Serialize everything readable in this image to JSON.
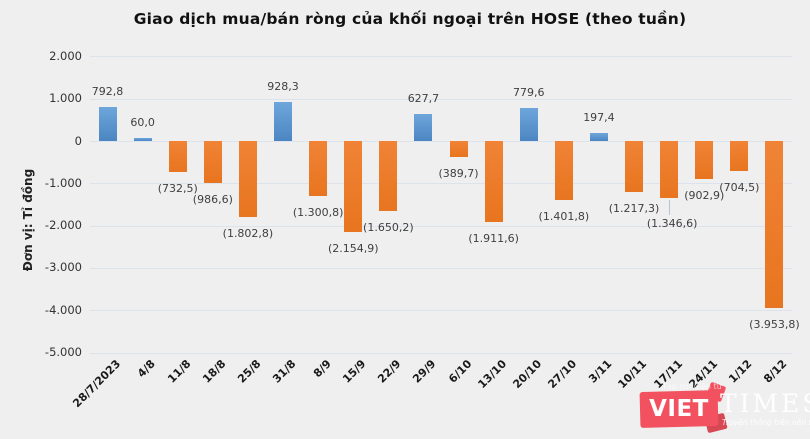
{
  "title": "Giao dịch mua/bán ròng của khối ngoại trên HOSE (theo tuần)",
  "y_axis_title": "Đơn vị: Tỉ đồng",
  "chart_data": {
    "type": "bar",
    "categories": [
      "28/7/2023",
      "4/8",
      "11/8",
      "18/8",
      "25/8",
      "31/8",
      "8/9",
      "15/9",
      "22/9",
      "29/9",
      "6/10",
      "13/10",
      "20/10",
      "27/10",
      "3/11",
      "10/11",
      "17/11",
      "24/11",
      "1/12",
      "8/12"
    ],
    "values": [
      792.8,
      60.0,
      -732.5,
      -986.6,
      -1802.8,
      928.3,
      -1300.8,
      -2154.9,
      -1650.2,
      627.7,
      -389.7,
      -1911.6,
      779.6,
      -1401.8,
      197.4,
      -1217.3,
      -1346.6,
      -902.9,
      -704.5,
      -3953.8
    ],
    "data_labels": [
      "792,8",
      "60,0",
      "(732,5)",
      "(986,6)",
      "(1.802,8)",
      "928,3",
      "(1.300,8)",
      "(2.154,9)",
      "(1.650,2)",
      "627,7",
      "(389,7)",
      "(1.911,6)",
      "779,6",
      "(1.401,8)",
      "197,4",
      "(1.217,3)",
      "(1.346,6)",
      "(902,9)",
      "(704,5)",
      "(3.953,8)"
    ],
    "title": "Giao dịch mua/bán ròng của khối ngoại trên HOSE (theo tuần)",
    "xlabel": "",
    "ylabel": "Đơn vị: Tỉ đồng",
    "ylim": [
      -5000,
      2000
    ],
    "y_ticks": [
      2000,
      1000,
      0,
      -1000,
      -2000,
      -3000,
      -4000,
      -5000
    ],
    "y_tick_labels": [
      "2.000",
      "1.000",
      "0",
      "-1.000",
      "-2.000",
      "-3.000",
      "-4.000",
      "-5.000"
    ],
    "grid": true,
    "legend": "none",
    "colors": {
      "positive_bar": "#5b9bd5",
      "negative_bar": "#ed7d31",
      "background": "#efefef",
      "gridline": "#dde3ec"
    },
    "annotations": {
      "leader_line_category": "17/11"
    }
  },
  "watermark": {
    "small_text": "Tạp chí điện tử",
    "brand_left": "VIET",
    "brand_right": "TIMES",
    "tagline": "Truyền thông trên nền tảng số",
    "brand_color": "#f2525f"
  }
}
